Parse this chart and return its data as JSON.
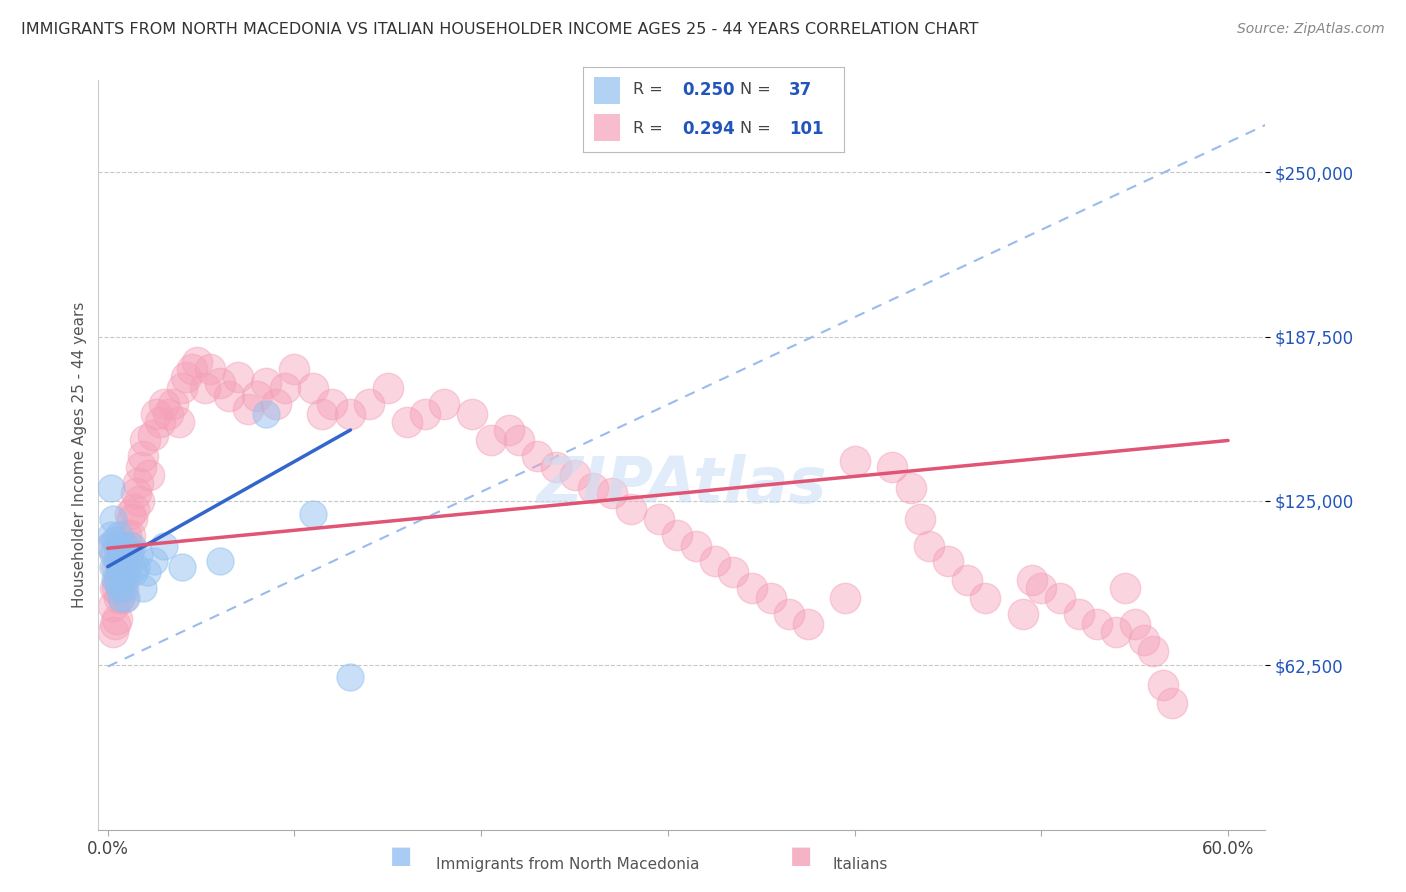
{
  "title": "IMMIGRANTS FROM NORTH MACEDONIA VS ITALIAN HOUSEHOLDER INCOME AGES 25 - 44 YEARS CORRELATION CHART",
  "source": "Source: ZipAtlas.com",
  "ylabel": "Householder Income Ages 25 - 44 years",
  "xlim": [
    -0.005,
    0.62
  ],
  "ylim": [
    0,
    285000
  ],
  "yticks": [
    62500,
    125000,
    187500,
    250000
  ],
  "ytick_labels": [
    "$62,500",
    "$125,000",
    "$187,500",
    "$250,000"
  ],
  "xtick_positions": [
    0.0,
    0.1,
    0.2,
    0.3,
    0.4,
    0.5,
    0.6
  ],
  "xtick_labels": [
    "0.0%",
    "",
    "",
    "",
    "",
    "",
    "60.0%"
  ],
  "grid_color": "#c8c8c8",
  "background_color": "#ffffff",
  "blue_color": "#92c0f0",
  "pink_color": "#f5a0b8",
  "blue_line_color": "#3366cc",
  "pink_line_color": "#e05575",
  "dash_line_color": "#99bbee",
  "legend_R1": "0.250",
  "legend_N1": "37",
  "legend_R2": "0.294",
  "legend_N2": "101",
  "accent_color": "#2255bb",
  "blue_x": [
    0.001,
    0.002,
    0.002,
    0.003,
    0.003,
    0.003,
    0.004,
    0.004,
    0.005,
    0.005,
    0.005,
    0.006,
    0.006,
    0.006,
    0.007,
    0.007,
    0.008,
    0.008,
    0.009,
    0.009,
    0.01,
    0.01,
    0.011,
    0.012,
    0.013,
    0.014,
    0.015,
    0.017,
    0.019,
    0.021,
    0.025,
    0.03,
    0.04,
    0.06,
    0.085,
    0.11,
    0.13
  ],
  "blue_y": [
    108000,
    130000,
    112000,
    105000,
    118000,
    100000,
    95000,
    110000,
    108000,
    102000,
    95000,
    112000,
    100000,
    92000,
    105000,
    88000,
    100000,
    92000,
    108000,
    95000,
    105000,
    88000,
    100000,
    105000,
    108000,
    98000,
    100000,
    105000,
    92000,
    98000,
    102000,
    108000,
    100000,
    102000,
    158000,
    120000,
    58000
  ],
  "pink_x": [
    0.002,
    0.003,
    0.003,
    0.004,
    0.004,
    0.005,
    0.005,
    0.005,
    0.006,
    0.006,
    0.007,
    0.007,
    0.008,
    0.008,
    0.009,
    0.01,
    0.01,
    0.011,
    0.012,
    0.012,
    0.013,
    0.014,
    0.015,
    0.016,
    0.017,
    0.018,
    0.019,
    0.02,
    0.022,
    0.024,
    0.026,
    0.028,
    0.03,
    0.032,
    0.035,
    0.038,
    0.04,
    0.042,
    0.045,
    0.048,
    0.052,
    0.055,
    0.06,
    0.065,
    0.07,
    0.075,
    0.08,
    0.085,
    0.09,
    0.095,
    0.1,
    0.11,
    0.115,
    0.12,
    0.13,
    0.14,
    0.15,
    0.16,
    0.17,
    0.18,
    0.195,
    0.205,
    0.215,
    0.22,
    0.23,
    0.24,
    0.25,
    0.26,
    0.27,
    0.28,
    0.295,
    0.305,
    0.315,
    0.325,
    0.335,
    0.345,
    0.355,
    0.365,
    0.375,
    0.395,
    0.4,
    0.42,
    0.43,
    0.435,
    0.44,
    0.45,
    0.46,
    0.47,
    0.49,
    0.495,
    0.5,
    0.51,
    0.52,
    0.53,
    0.54,
    0.545,
    0.55,
    0.555,
    0.56,
    0.565,
    0.57
  ],
  "pink_y": [
    108000,
    85000,
    75000,
    92000,
    78000,
    80000,
    92000,
    100000,
    88000,
    95000,
    100000,
    108000,
    92000,
    88000,
    98000,
    105000,
    112000,
    108000,
    120000,
    112000,
    118000,
    122000,
    128000,
    132000,
    125000,
    138000,
    142000,
    148000,
    135000,
    150000,
    158000,
    155000,
    162000,
    158000,
    162000,
    155000,
    168000,
    172000,
    175000,
    178000,
    168000,
    175000,
    170000,
    165000,
    172000,
    160000,
    165000,
    170000,
    162000,
    168000,
    175000,
    168000,
    158000,
    162000,
    158000,
    162000,
    168000,
    155000,
    158000,
    162000,
    158000,
    148000,
    152000,
    148000,
    142000,
    138000,
    135000,
    130000,
    128000,
    122000,
    118000,
    112000,
    108000,
    102000,
    98000,
    92000,
    88000,
    82000,
    78000,
    88000,
    140000,
    138000,
    130000,
    118000,
    108000,
    102000,
    95000,
    88000,
    82000,
    95000,
    92000,
    88000,
    82000,
    78000,
    75000,
    92000,
    78000,
    72000,
    68000,
    55000,
    48000
  ]
}
